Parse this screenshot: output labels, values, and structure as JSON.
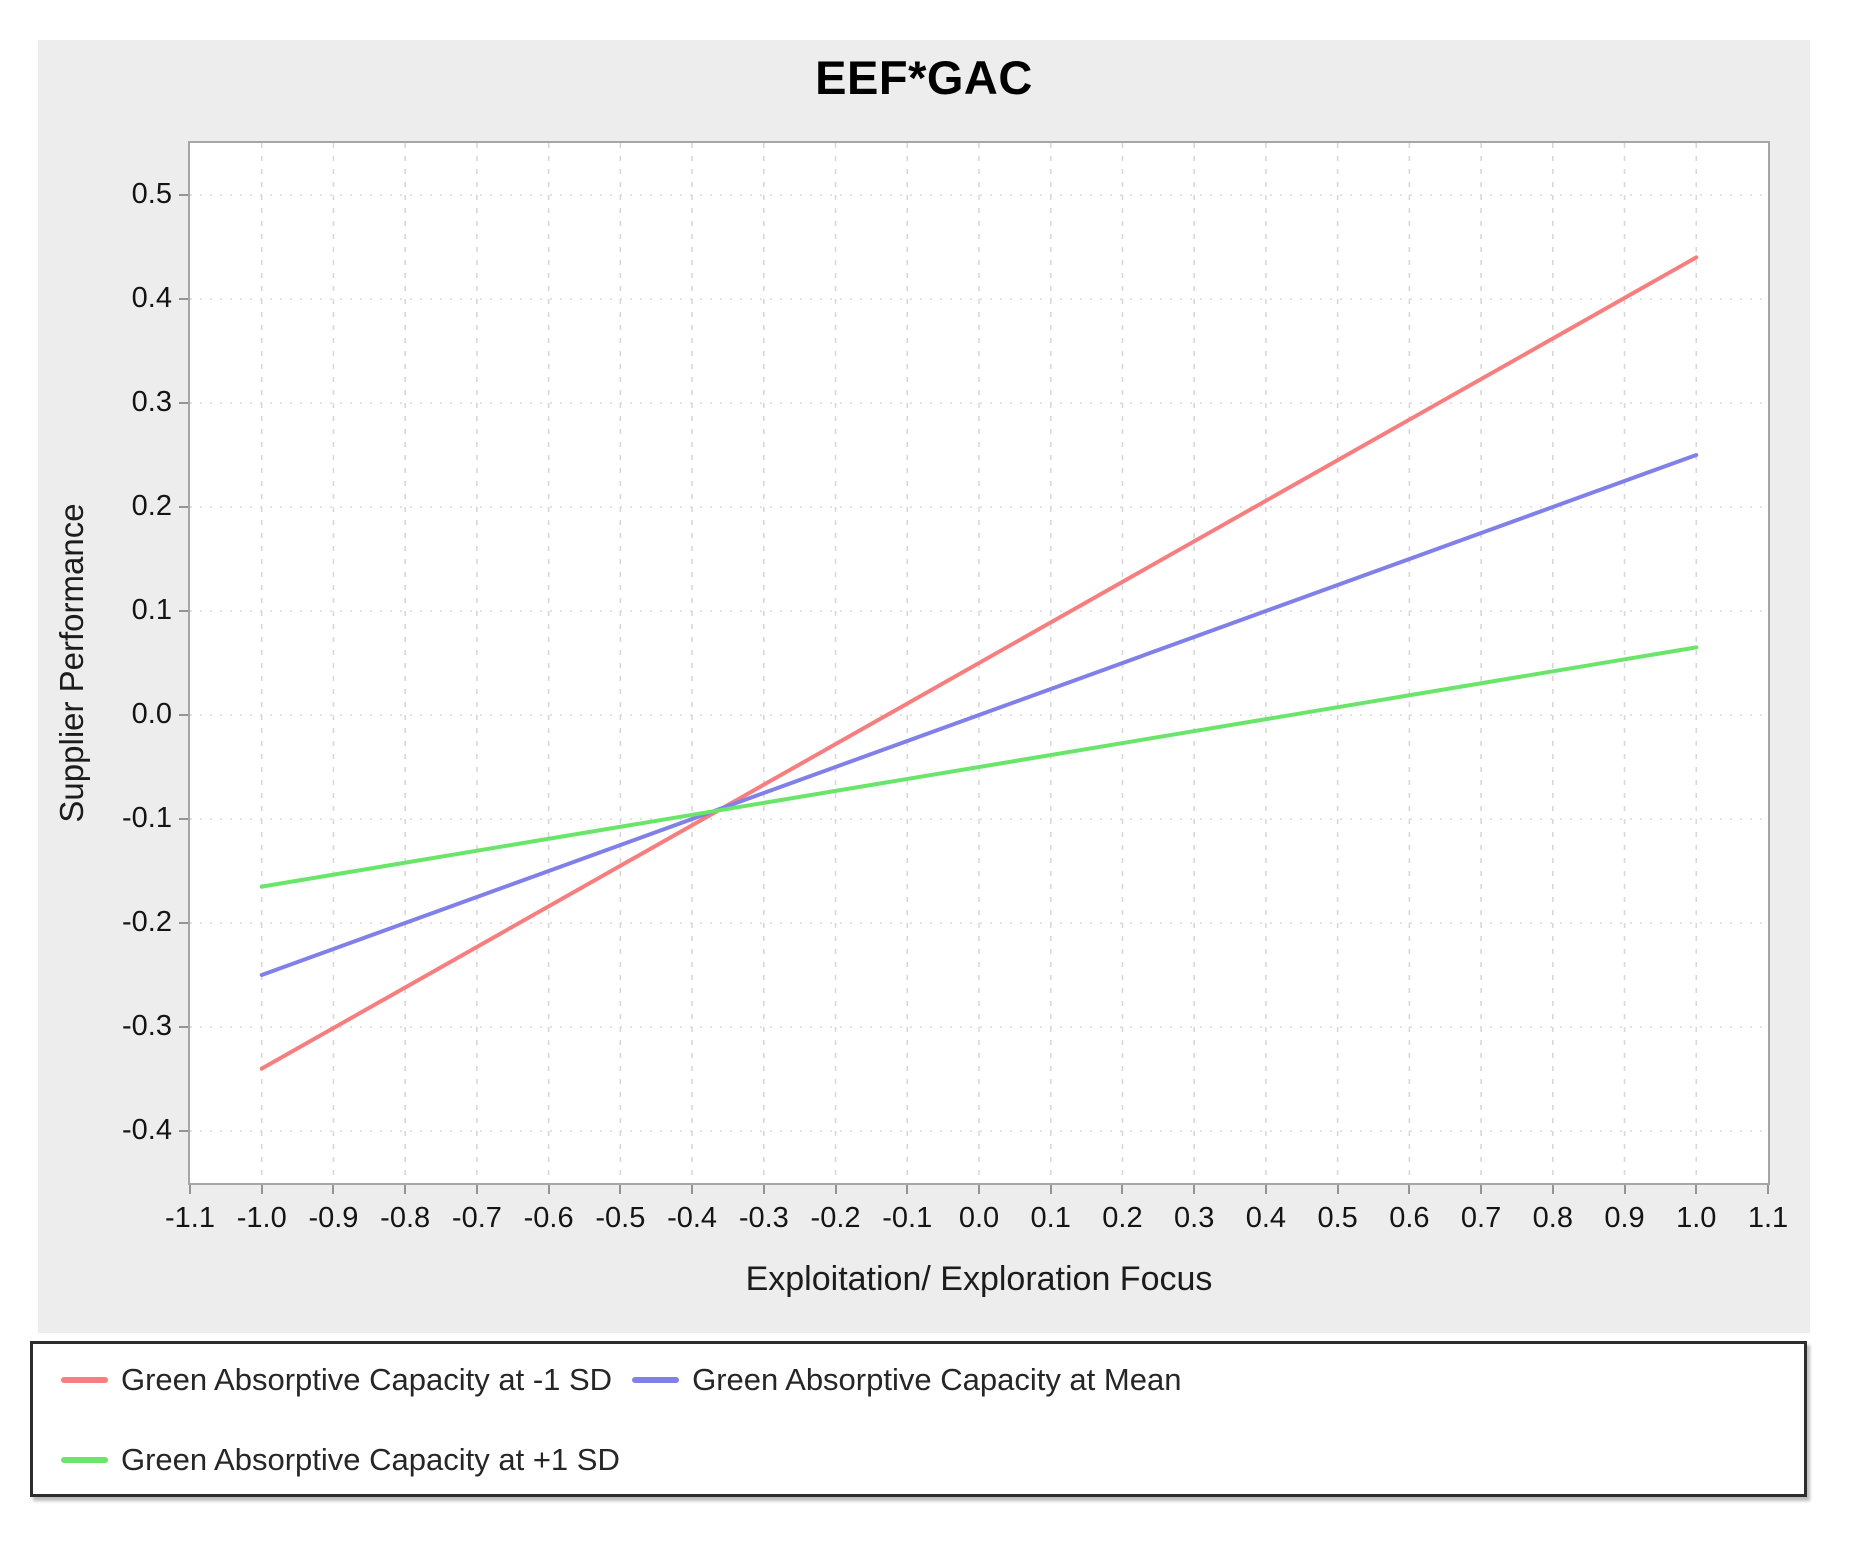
{
  "chart_data": {
    "type": "line",
    "title": "EEF*GAC",
    "xlabel": "Exploitation/ Exploration Focus",
    "ylabel": "Supplier Performance",
    "xlim": [
      -1.1,
      1.1
    ],
    "ylim": [
      -0.45,
      0.55
    ],
    "grid": true,
    "legend_position": "bottom box, two rows",
    "x_ticks": [
      -1.1,
      -1.0,
      -0.9,
      -0.8,
      -0.7,
      -0.6,
      -0.5,
      -0.4,
      -0.3,
      -0.2,
      -0.1,
      0.0,
      0.1,
      0.2,
      0.3,
      0.4,
      0.5,
      0.6,
      0.7,
      0.8,
      0.9,
      1.0,
      1.1
    ],
    "x_tick_labels": [
      "-1.1",
      "-1.0",
      "-0.9",
      "-0.8",
      "-0.7",
      "-0.6",
      "-0.5",
      "-0.4",
      "-0.3",
      "-0.2",
      "-0.1",
      "0.0",
      "0.1",
      "0.2",
      "0.3",
      "0.4",
      "0.5",
      "0.6",
      "0.7",
      "0.8",
      "0.9",
      "1.0",
      "1.1"
    ],
    "y_ticks": [
      0.5,
      0.4,
      0.3,
      0.2,
      0.1,
      0.0,
      -0.1,
      -0.2,
      -0.3,
      -0.4
    ],
    "y_tick_labels": [
      "0.5",
      "0.4",
      "0.3",
      "0.2",
      "0.1",
      "0.0",
      "-0.1",
      "-0.2",
      "-0.3",
      "-0.4"
    ],
    "series": [
      {
        "name": "Green Absorptive Capacity at -1 SD",
        "color": "#f67e7e",
        "x": [
          -1.0,
          1.0
        ],
        "y": [
          -0.34,
          0.44
        ]
      },
      {
        "name": "Green Absorptive Capacity at Mean",
        "color": "#8080e8",
        "x": [
          -1.0,
          1.0
        ],
        "y": [
          -0.25,
          0.25
        ]
      },
      {
        "name": "Green Absorptive Capacity at +1 SD",
        "color": "#69e669",
        "x": [
          -1.0,
          1.0
        ],
        "y": [
          -0.165,
          0.065
        ]
      }
    ],
    "colors": {
      "panel_background": "#ededed",
      "plot_background": "#ffffff",
      "plot_border": "#a6a6a6",
      "gridline": "#d8d8d8",
      "tick": "#949494",
      "text": "#141414"
    }
  }
}
